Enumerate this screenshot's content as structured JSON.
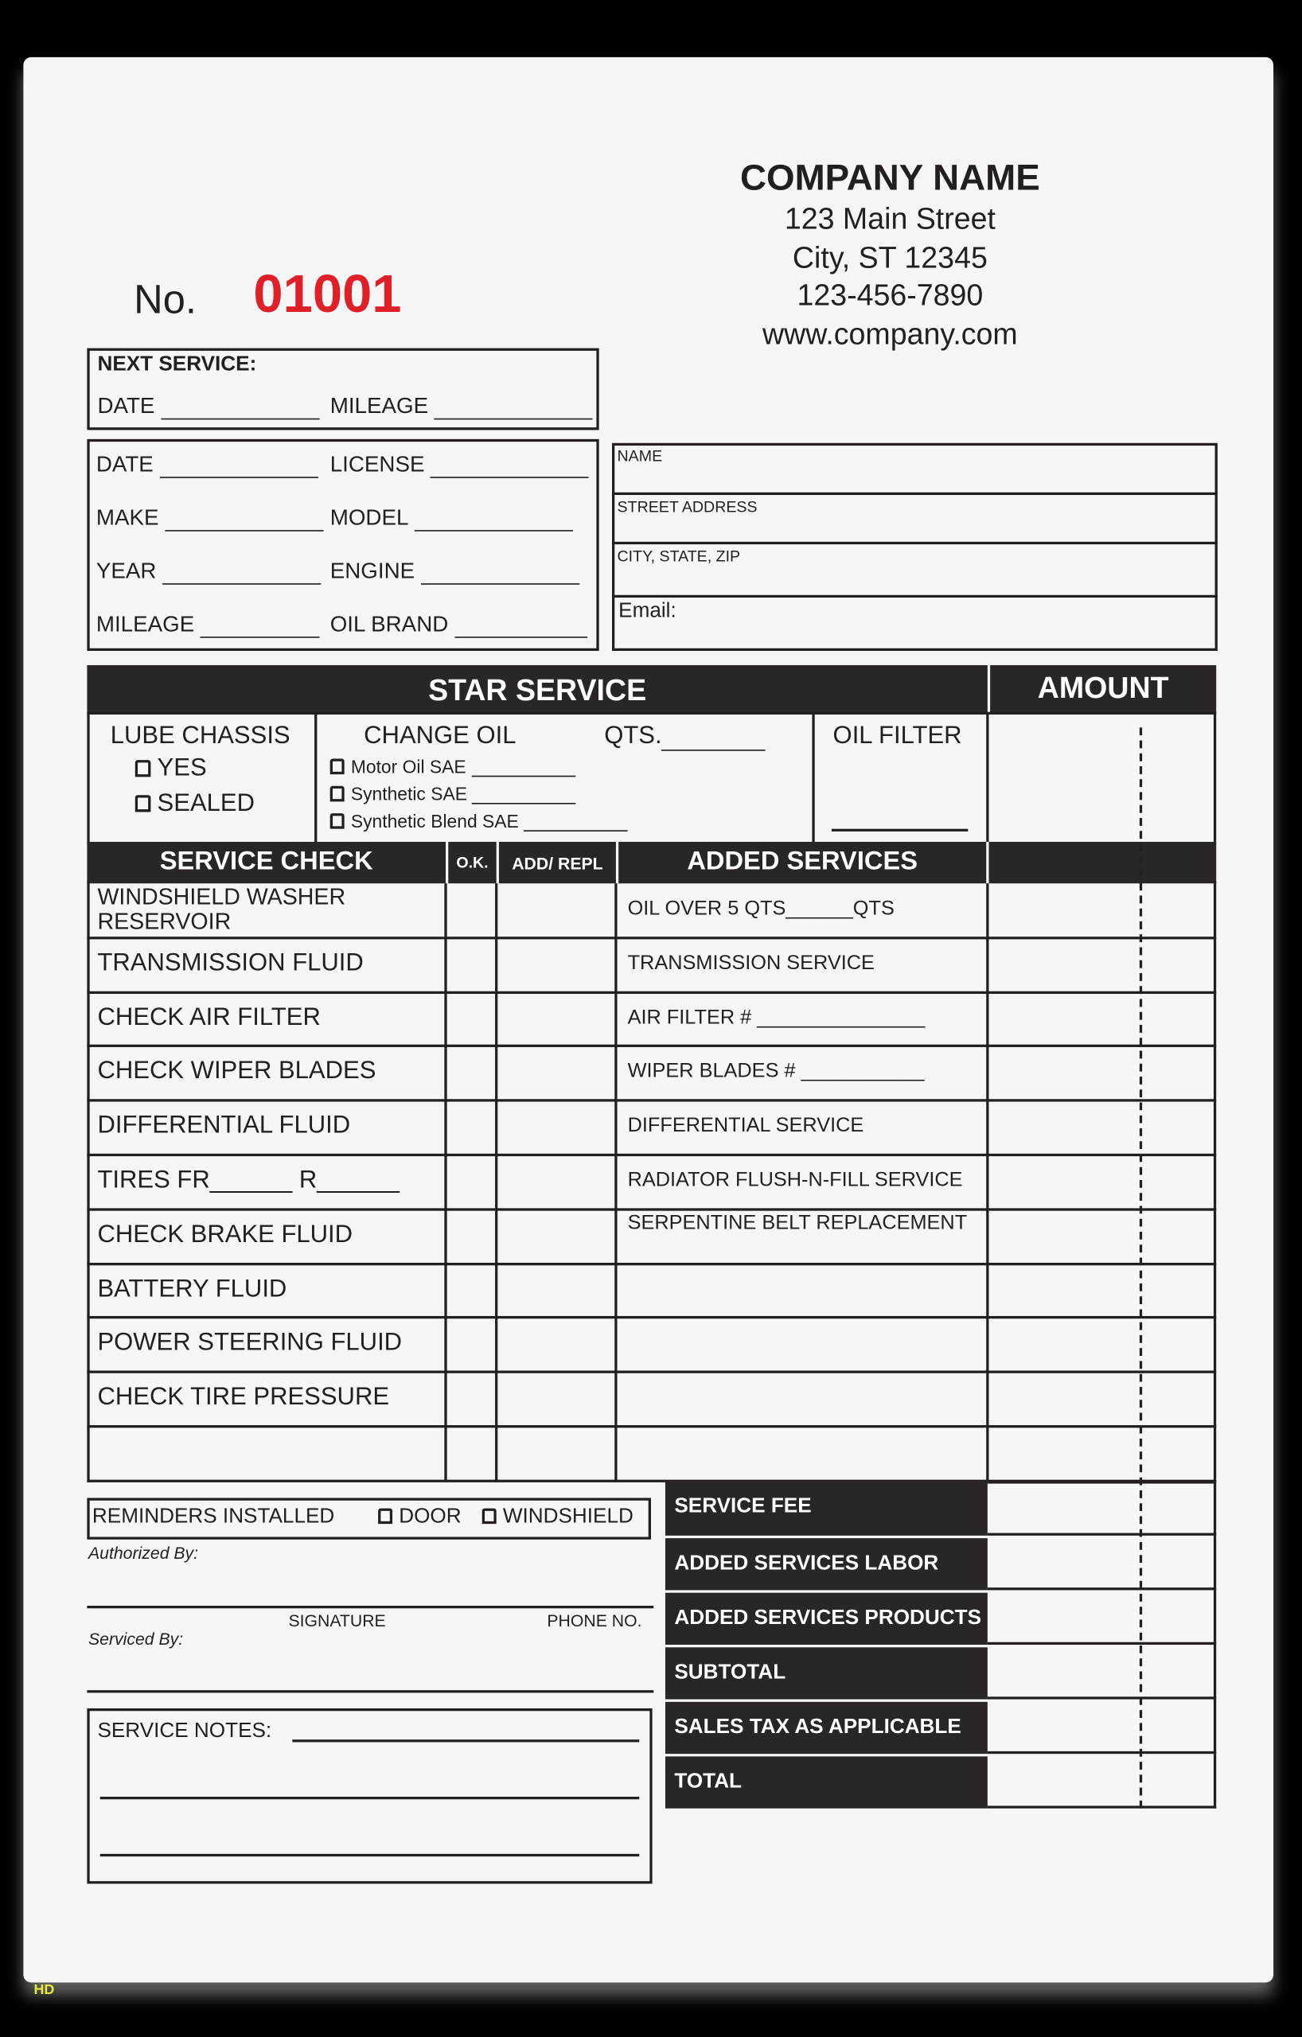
{
  "company": {
    "name": "COMPANY NAME",
    "street": "123 Main Street",
    "city": "City, ST 12345",
    "phone": "123-456-7890",
    "web": "www.company.com"
  },
  "invoice": {
    "no_label": "No.",
    "number": "01001",
    "number_color": "#e02028"
  },
  "next_service": {
    "title": "NEXT SERVICE:",
    "date": "DATE",
    "mileage": "MILEAGE"
  },
  "vehicle": {
    "date": "DATE",
    "license": "LICENSE",
    "make": "MAKE",
    "model": "MODEL",
    "year": "YEAR",
    "engine": "ENGINE",
    "mileage": "MILEAGE",
    "oil_brand": "OIL BRAND"
  },
  "customer": {
    "name": "NAME",
    "street": "STREET ADDRESS",
    "city": "CITY, STATE, ZIP",
    "email": "Email:"
  },
  "star": {
    "title": "STAR SERVICE",
    "amount": "AMOUNT",
    "lube": "LUBE CHASSIS",
    "yes": "YES",
    "sealed": "SEALED",
    "change_oil": "CHANGE OIL",
    "qts": "QTS.",
    "motor": "Motor Oil SAE",
    "synthetic": "Synthetic SAE",
    "blend": "Synthetic Blend SAE",
    "oil_filter": "OIL FILTER"
  },
  "headers": {
    "service_check": "SERVICE CHECK",
    "ok": "O.K.",
    "add": "ADD/ REPL",
    "added": "ADDED SERVICES"
  },
  "service_checks": [
    "WINDSHIELD WASHER RESERVOIR",
    "TRANSMISSION FLUID",
    "CHECK AIR FILTER",
    "CHECK WIPER BLADES",
    "DIFFERENTIAL FLUID",
    "TIRES FR______ R______",
    "CHECK BRAKE FLUID",
    "BATTERY FLUID",
    "POWER STEERING FLUID",
    "CHECK TIRE PRESSURE",
    ""
  ],
  "added_services": [
    "OIL OVER 5 QTS______QTS",
    "TRANSMISSION SERVICE",
    "AIR FILTER # _______________",
    "WIPER BLADES # ___________",
    "DIFFERENTIAL SERVICE",
    "RADIATOR FLUSH-N-FILL SERVICE",
    "SERPENTINE BELT REPLACEMENT",
    "",
    "",
    "",
    ""
  ],
  "reminders": {
    "label": "REMINDERS INSTALLED",
    "door": "DOOR",
    "windshield": "WINDSHIELD"
  },
  "auth": {
    "authorized": "Authorized By:",
    "signature": "SIGNATURE",
    "phone": "PHONE NO.",
    "serviced": "Serviced By:"
  },
  "notes": {
    "label": "SERVICE NOTES:"
  },
  "totals": [
    "SERVICE FEE",
    "ADDED SERVICES LABOR",
    "ADDED SERVICES PRODUCTS",
    "SUBTOTAL",
    "SALES TAX AS APPLICABLE",
    "TOTAL"
  ],
  "watermark": "HD"
}
